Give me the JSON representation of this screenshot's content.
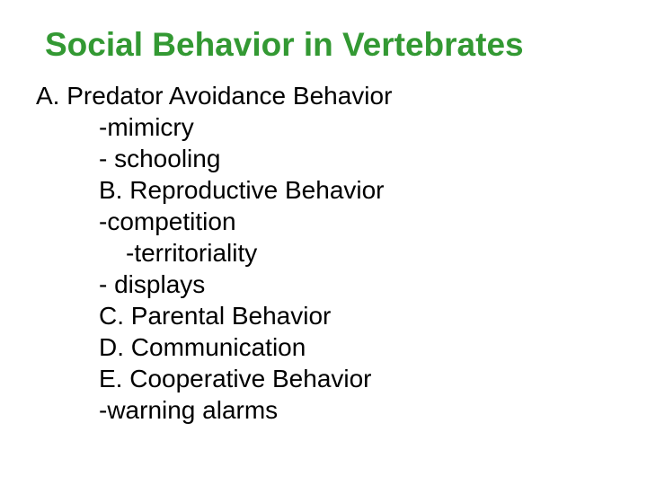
{
  "slide": {
    "title": "Social Behavior in Vertebrates",
    "line_a": "A. Predator Avoidance Behavior",
    "lines": [
      "-mimicry",
      "- schooling",
      "B. Reproductive Behavior",
      "-competition"
    ],
    "line_sub": "-territoriality",
    "lines2": [
      "- displays",
      "C. Parental Behavior",
      "D. Communication",
      "E. Cooperative Behavior",
      "-warning alarms"
    ],
    "colors": {
      "title": "#339933",
      "text": "#000000",
      "background": "#ffffff"
    },
    "typography": {
      "title_fontsize": 37,
      "title_weight": "bold",
      "body_fontsize": 28,
      "font_family": "Arial"
    }
  }
}
